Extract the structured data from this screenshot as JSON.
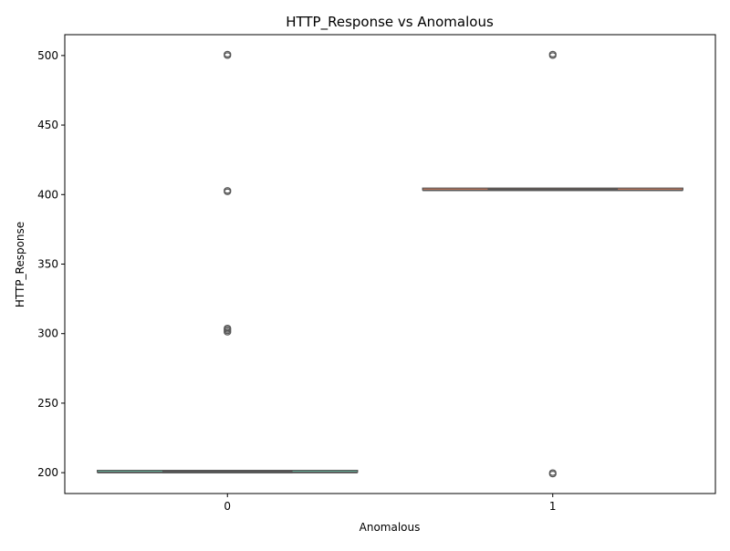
{
  "chart_data": {
    "type": "box",
    "title": "HTTP_Response vs Anomalous",
    "xlabel": "Anomalous",
    "ylabel": "HTTP_Response",
    "categories": [
      "0",
      "1"
    ],
    "ylim": [
      185,
      515
    ],
    "yticks": [
      200,
      250,
      300,
      350,
      400,
      450,
      500
    ],
    "grid": false,
    "legend": "none",
    "boxes": [
      {
        "category": "0",
        "q1": 200,
        "median": 200,
        "q3": 201,
        "whisker_low": 200,
        "whisker_high": 201,
        "color": "#66c2a5",
        "outliers": [
          301,
          302,
          303,
          304,
          402,
          403,
          500,
          501
        ]
      },
      {
        "category": "1",
        "q1": 403,
        "median": 403,
        "q3": 404,
        "whisker_low": 403,
        "whisker_high": 404,
        "color": "#fc8d62",
        "outliers": [
          199,
          200,
          500,
          501
        ]
      }
    ]
  }
}
